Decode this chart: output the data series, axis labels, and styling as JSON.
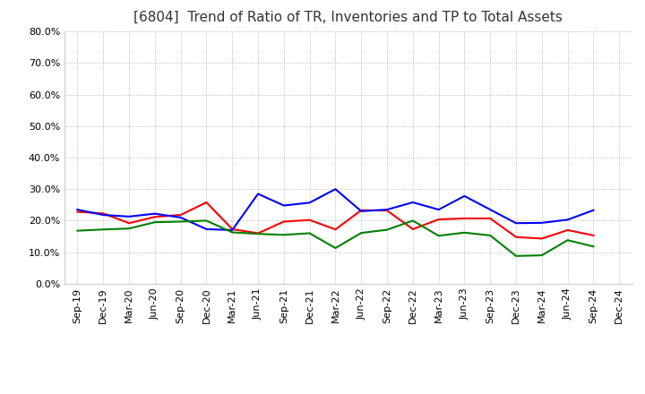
{
  "title": "[6804]  Trend of Ratio of TR, Inventories and TP to Total Assets",
  "x_labels": [
    "Sep-19",
    "Dec-19",
    "Mar-20",
    "Jun-20",
    "Sep-20",
    "Dec-20",
    "Mar-21",
    "Jun-21",
    "Sep-21",
    "Dec-21",
    "Mar-22",
    "Jun-22",
    "Sep-22",
    "Dec-22",
    "Mar-23",
    "Jun-23",
    "Sep-23",
    "Dec-23",
    "Mar-24",
    "Jun-24",
    "Sep-24",
    "Dec-24"
  ],
  "trade_receivables": [
    0.228,
    0.223,
    0.192,
    0.212,
    0.218,
    0.258,
    0.173,
    0.16,
    0.197,
    0.202,
    0.172,
    0.233,
    0.232,
    0.173,
    0.204,
    0.207,
    0.207,
    0.148,
    0.143,
    0.17,
    0.153,
    null
  ],
  "inventories": [
    0.235,
    0.218,
    0.213,
    0.222,
    0.21,
    0.173,
    0.17,
    0.285,
    0.248,
    0.257,
    0.3,
    0.23,
    0.235,
    0.258,
    0.235,
    0.278,
    0.235,
    0.192,
    0.193,
    0.203,
    0.233,
    null
  ],
  "trade_payables": [
    0.168,
    0.172,
    0.175,
    0.195,
    0.197,
    0.2,
    0.163,
    0.158,
    0.155,
    0.16,
    0.113,
    0.161,
    0.171,
    0.2,
    0.152,
    0.162,
    0.153,
    0.088,
    0.09,
    0.138,
    0.118,
    null
  ],
  "tr_color": "#ff0000",
  "inv_color": "#0000ff",
  "tp_color": "#008000",
  "ylim": [
    0.0,
    0.8
  ],
  "yticks": [
    0.0,
    0.1,
    0.2,
    0.3,
    0.4,
    0.5,
    0.6,
    0.7,
    0.8
  ],
  "background_color": "#ffffff",
  "grid_color": "#aaaaaa",
  "title_fontsize": 11,
  "title_color": "#333333",
  "legend_fontsize": 9,
  "tick_fontsize": 8,
  "linewidth": 1.5
}
